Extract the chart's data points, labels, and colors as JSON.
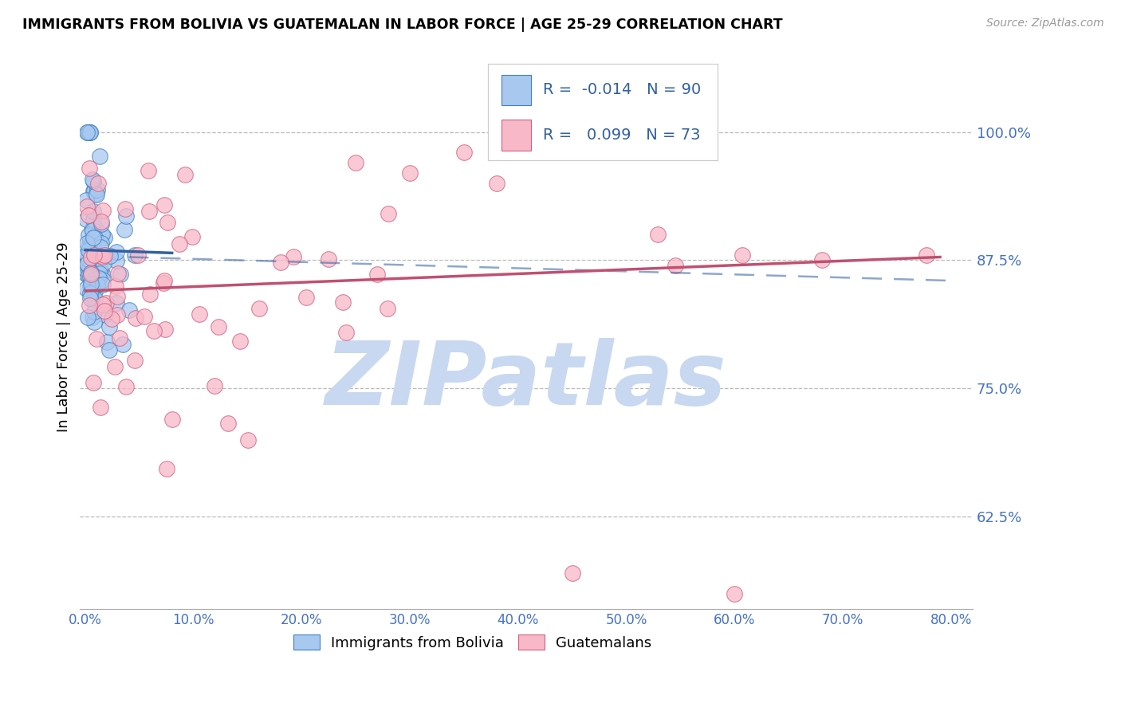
{
  "title": "IMMIGRANTS FROM BOLIVIA VS GUATEMALAN IN LABOR FORCE | AGE 25-29 CORRELATION CHART",
  "source": "Source: ZipAtlas.com",
  "ylabel": "In Labor Force | Age 25-29",
  "right_yticks": [
    0.625,
    0.75,
    0.875,
    1.0
  ],
  "right_yticklabels": [
    "62.5%",
    "75.0%",
    "87.5%",
    "100.0%"
  ],
  "bolivia_R": -0.014,
  "bolivia_N": 90,
  "guatemala_R": 0.099,
  "guatemala_N": 73,
  "bolivia_color": "#A8C8F0",
  "bolivia_edge_color": "#4080C0",
  "bolivia_line_color": "#3060A0",
  "guatemala_color": "#F8B8C8",
  "guatemala_edge_color": "#D06080",
  "guatemala_line_color": "#C05070",
  "watermark": "ZIPatlas",
  "watermark_color": "#C8D8F0",
  "xlim": [
    -0.005,
    0.82
  ],
  "ylim": [
    0.535,
    1.065
  ],
  "legend_R_color": "#3060A0",
  "legend_N_color": "#3060A0"
}
